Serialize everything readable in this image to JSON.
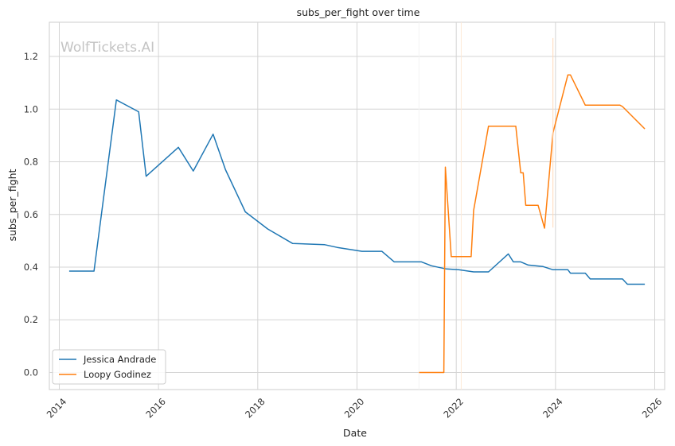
{
  "chart_data": {
    "type": "line",
    "title": "subs_per_fight over time",
    "xlabel": "Date",
    "ylabel": "subs_per_fight",
    "watermark": "WolfTickets.AI",
    "xlim": [
      2013.8,
      2026.2
    ],
    "ylim": [
      -0.065,
      1.33
    ],
    "x_ticks": [
      2014,
      2016,
      2018,
      2020,
      2022,
      2024,
      2026
    ],
    "y_ticks": [
      0.0,
      0.2,
      0.4,
      0.6,
      0.8,
      1.0,
      1.2
    ],
    "x_tick_labels": [
      "2014",
      "2016",
      "2018",
      "2020",
      "2022",
      "2024",
      "2026"
    ],
    "y_tick_labels": [
      "0.0",
      "0.2",
      "0.4",
      "0.6",
      "0.8",
      "1.0",
      "1.2"
    ],
    "grid": true,
    "legend_position": "lower-left",
    "series": [
      {
        "name": "Jessica Andrade",
        "color": "#1f77b4",
        "x": [
          2014.2,
          2014.7,
          2015.15,
          2015.6,
          2015.75,
          2016.4,
          2016.7,
          2017.1,
          2017.35,
          2017.75,
          2018.2,
          2018.7,
          2019.35,
          2019.6,
          2020.1,
          2020.5,
          2020.75,
          2021.3,
          2021.5,
          2021.8,
          2022.05,
          2022.35,
          2022.65,
          2023.05,
          2023.15,
          2023.3,
          2023.45,
          2023.75,
          2023.95,
          2024.25,
          2024.3,
          2024.6,
          2024.7,
          2025.0,
          2025.35,
          2025.45,
          2025.8
        ],
        "y": [
          0.385,
          0.385,
          1.035,
          0.99,
          0.745,
          0.855,
          0.765,
          0.905,
          0.77,
          0.61,
          0.545,
          0.49,
          0.485,
          0.475,
          0.46,
          0.46,
          0.42,
          0.42,
          0.405,
          0.393,
          0.39,
          0.382,
          0.382,
          0.45,
          0.42,
          0.42,
          0.408,
          0.402,
          0.39,
          0.39,
          0.377,
          0.377,
          0.355,
          0.355,
          0.355,
          0.335,
          0.335
        ],
        "linewidth": 1.5
      },
      {
        "name": "Loopy Godinez",
        "color": "#ff7f0e",
        "x": [
          2021.25,
          2021.75,
          2021.78,
          2021.9,
          2022.3,
          2022.35,
          2022.65,
          2023.2,
          2023.3,
          2023.35,
          2023.4,
          2023.65,
          2023.78,
          2023.95,
          2024.25,
          2024.3,
          2024.6,
          2025.3,
          2025.35,
          2025.8
        ],
        "y": [
          0.0,
          0.0,
          0.78,
          0.44,
          0.44,
          0.615,
          0.935,
          0.935,
          0.758,
          0.758,
          0.635,
          0.635,
          0.548,
          0.91,
          1.13,
          1.13,
          1.015,
          1.015,
          1.01,
          0.925
        ],
        "linewidth": 1.5
      },
      {
        "color": "#ffd9b8",
        "x": [
          2023.95,
          2023.95
        ],
        "y": [
          1.27,
          0.55
        ],
        "linewidth": 1.0
      }
    ],
    "extra_vertical_marks": [
      {
        "color": "#f3f3f3",
        "x": [
          2021.25,
          2021.25
        ],
        "y": [
          -0.065,
          1.33
        ]
      },
      {
        "color": "#fde9d7",
        "x": [
          2022.1,
          2022.1
        ],
        "y": [
          -0.065,
          1.33
        ]
      }
    ]
  }
}
